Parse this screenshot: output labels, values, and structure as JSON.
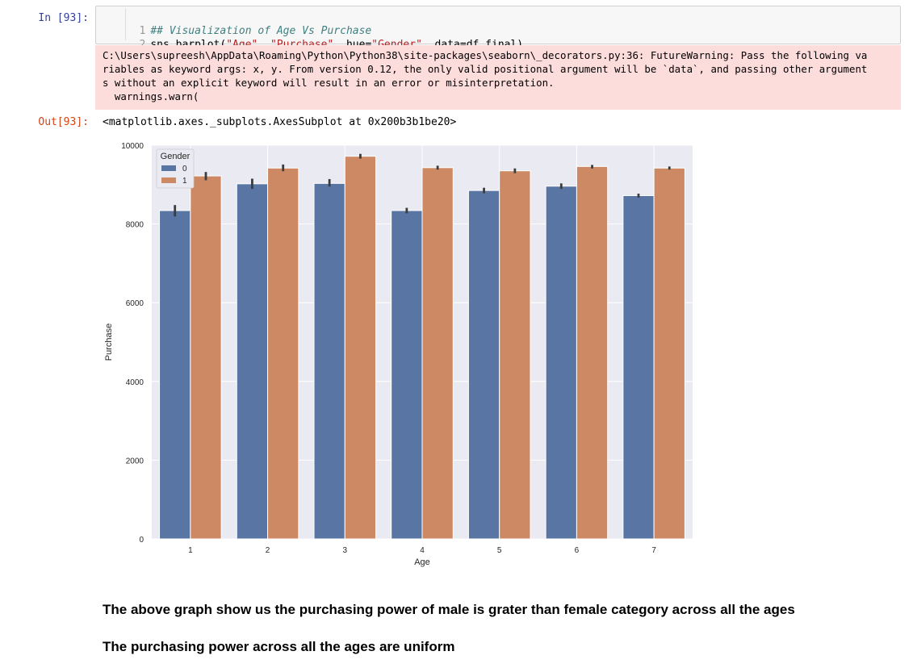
{
  "input_cell": {
    "prompt": "In [93]:",
    "lines": [
      {
        "num": "1",
        "comment": "## Visualization of Age Vs Purchase"
      },
      {
        "num": "2",
        "code_parts": [
          "sns.barplot(",
          "\"Age\"",
          ", ",
          "\"Purchase\"",
          ", hue=",
          "\"Gender\"",
          ", data=df_final)"
        ]
      }
    ]
  },
  "stderr": {
    "lines": [
      "C:\\Users\\supreesh\\AppData\\Roaming\\Python\\Python38\\site-packages\\seaborn\\_decorators.py:36: FutureWarning: Pass the following va",
      "riables as keyword args: x, y. From version 0.12, the only valid positional argument will be `data`, and passing other argument",
      "s without an explicit keyword will result in an error or misinterpretation.",
      "  warnings.warn("
    ]
  },
  "output_cell": {
    "prompt": "Out[93]:",
    "repr": "<matplotlib.axes._subplots.AxesSubplot at 0x200b3b1be20>"
  },
  "chart_data": {
    "type": "bar",
    "title": "",
    "xlabel": "Age",
    "ylabel": "Purchase",
    "categories": [
      "1",
      "2",
      "3",
      "4",
      "5",
      "6",
      "7"
    ],
    "ylim": [
      0,
      10000
    ],
    "yticks": [
      0,
      2000,
      4000,
      6000,
      8000,
      10000
    ],
    "grid": true,
    "legend": {
      "title": "Gender",
      "placement": "upper-left"
    },
    "series": [
      {
        "name": "0",
        "color": "#5975a4",
        "values": [
          8340,
          9020,
          9030,
          8340,
          8850,
          8960,
          8720
        ],
        "err": [
          [
            8190,
            8480
          ],
          [
            8890,
            9150
          ],
          [
            8950,
            9140
          ],
          [
            8270,
            8410
          ],
          [
            8780,
            8920
          ],
          [
            8890,
            9030
          ],
          [
            8670,
            8770
          ]
        ]
      },
      {
        "name": "1",
        "color": "#cc8963",
        "values": [
          9220,
          9420,
          9720,
          9430,
          9350,
          9460,
          9420
        ],
        "err": [
          [
            9110,
            9320
          ],
          [
            9340,
            9510
          ],
          [
            9660,
            9780
          ],
          [
            9380,
            9480
          ],
          [
            9290,
            9410
          ],
          [
            9410,
            9500
          ],
          [
            9380,
            9460
          ]
        ]
      }
    ],
    "colors": {
      "background": "#eaeaf2",
      "grid": "#ffffff",
      "errbar": "#3c3c3c"
    }
  },
  "markdown": {
    "line1": "The above graph show us the purchasing power of male is grater than female category across all the ages",
    "line2": "The purchasing power across all the ages are uniform"
  }
}
